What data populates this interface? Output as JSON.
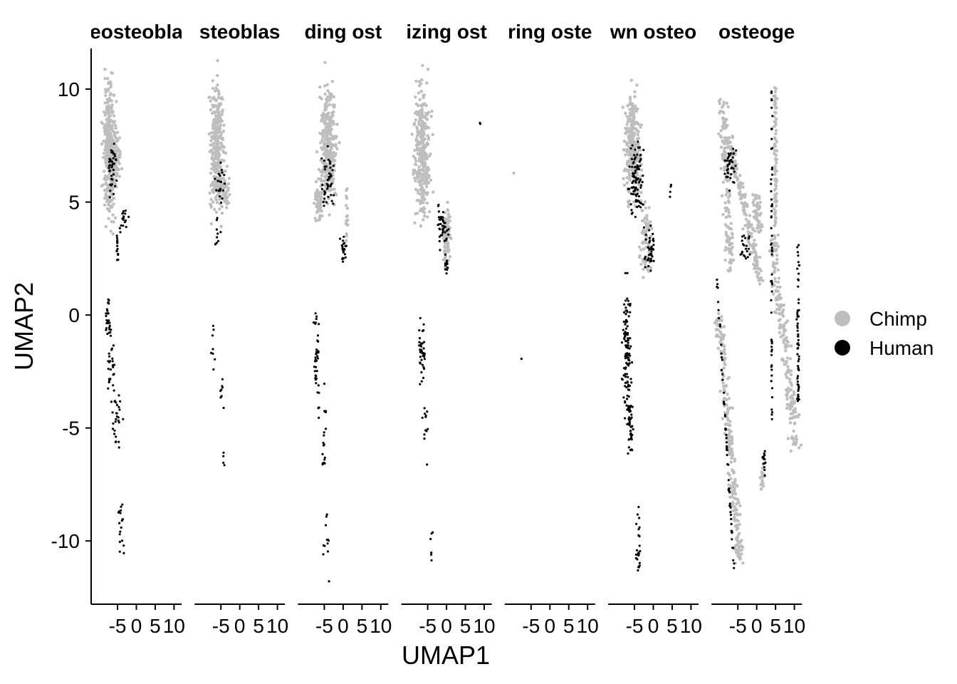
{
  "chart_data": {
    "type": "scatter",
    "xlabel": "UMAP1",
    "ylabel": "UMAP2",
    "xlim": [
      -12,
      12
    ],
    "ylim": [
      -12.8,
      11.8
    ],
    "x_ticks": [
      -5,
      0,
      5,
      10
    ],
    "x_tick_labels": [
      "-5",
      "0",
      "5",
      "10"
    ],
    "y_ticks": [
      -10,
      -5,
      0,
      5,
      10
    ],
    "y_tick_labels": [
      "-10",
      "-5",
      "0",
      "5",
      "10"
    ],
    "grid": false,
    "legend_placement": "right",
    "legend": [
      {
        "name": "Chimp",
        "color": "#bebebe"
      },
      {
        "name": "Human",
        "color": "#000000"
      }
    ],
    "facets": [
      {
        "title": "eosteobla",
        "chimp": [
          {
            "type": "blob",
            "cx": -7.2,
            "cy": 7.2,
            "rx": 1.4,
            "ry": 2.6,
            "n": 320
          },
          {
            "type": "blob",
            "cx": -5.5,
            "cy": 6.8,
            "rx": 1.2,
            "ry": 1.2,
            "n": 80
          }
        ],
        "human": [
          {
            "type": "blob",
            "cx": -6.5,
            "cy": 6.5,
            "rx": 1.0,
            "ry": 1.0,
            "n": 40
          },
          {
            "type": "blob",
            "cx": -3.5,
            "cy": 4.2,
            "rx": 1.2,
            "ry": 0.6,
            "n": 18
          },
          {
            "type": "blob",
            "cx": -5.0,
            "cy": 3.0,
            "rx": 0.25,
            "ry": 0.6,
            "n": 14
          },
          {
            "type": "blob",
            "cx": -7.5,
            "cy": 0.0,
            "rx": 0.4,
            "ry": 0.9,
            "n": 22
          },
          {
            "type": "blob",
            "cx": -6.8,
            "cy": -2.0,
            "rx": 0.8,
            "ry": 1.8,
            "n": 30
          },
          {
            "type": "blob",
            "cx": -5.0,
            "cy": -4.5,
            "rx": 1.2,
            "ry": 1.6,
            "n": 28
          },
          {
            "type": "blob",
            "cx": -4.0,
            "cy": -9.5,
            "rx": 0.8,
            "ry": 1.6,
            "n": 18
          }
        ]
      },
      {
        "title": "steoblas",
        "chimp": [
          {
            "type": "blob",
            "cx": -6.0,
            "cy": 7.4,
            "rx": 1.6,
            "ry": 2.4,
            "n": 340
          },
          {
            "type": "blob",
            "cx": -4.0,
            "cy": 5.5,
            "rx": 1.2,
            "ry": 0.8,
            "n": 50
          }
        ],
        "human": [
          {
            "type": "blob",
            "cx": -5.2,
            "cy": 5.8,
            "rx": 1.0,
            "ry": 0.9,
            "n": 20
          },
          {
            "type": "blob",
            "cx": -6.0,
            "cy": 3.8,
            "rx": 0.6,
            "ry": 0.7,
            "n": 10
          },
          {
            "type": "blob",
            "cx": -7.0,
            "cy": -1.5,
            "rx": 0.9,
            "ry": 1.0,
            "n": 8
          },
          {
            "type": "blob",
            "cx": -5.0,
            "cy": -3.5,
            "rx": 0.6,
            "ry": 1.2,
            "n": 8
          },
          {
            "type": "blob",
            "cx": -4.5,
            "cy": -6.2,
            "rx": 0.6,
            "ry": 0.6,
            "n": 4
          }
        ]
      },
      {
        "title": "ding ost",
        "chimp": [
          {
            "type": "blob",
            "cx": -4.0,
            "cy": 7.6,
            "rx": 2.0,
            "ry": 2.3,
            "n": 320
          },
          {
            "type": "blob",
            "cx": -6.5,
            "cy": 5.0,
            "rx": 1.2,
            "ry": 0.8,
            "n": 60
          },
          {
            "type": "blob",
            "cx": 1.0,
            "cy": 4.5,
            "rx": 0.3,
            "ry": 1.0,
            "n": 20
          }
        ],
        "human": [
          {
            "type": "blob",
            "cx": -4.0,
            "cy": 6.0,
            "rx": 1.5,
            "ry": 1.2,
            "n": 40
          },
          {
            "type": "blob",
            "cx": 0.0,
            "cy": 3.0,
            "rx": 0.8,
            "ry": 0.6,
            "n": 22
          },
          {
            "type": "blob",
            "cx": -7.0,
            "cy": -2.0,
            "rx": 0.7,
            "ry": 2.4,
            "n": 40
          },
          {
            "type": "blob",
            "cx": -5.0,
            "cy": -5.5,
            "rx": 0.4,
            "ry": 1.8,
            "n": 18
          },
          {
            "type": "blob",
            "cx": -4.5,
            "cy": -9.8,
            "rx": 0.6,
            "ry": 1.2,
            "n": 12
          }
        ]
      },
      {
        "title": "izing ost",
        "chimp": [
          {
            "type": "blob",
            "cx": -6.5,
            "cy": 7.2,
            "rx": 1.8,
            "ry": 2.6,
            "n": 320
          },
          {
            "type": "blob",
            "cx": 0.0,
            "cy": 3.5,
            "rx": 0.9,
            "ry": 1.2,
            "n": 90
          }
        ],
        "human": [
          {
            "type": "blob",
            "cx": -1.0,
            "cy": 4.0,
            "rx": 1.2,
            "ry": 0.8,
            "n": 40
          },
          {
            "type": "blob",
            "cx": 0.0,
            "cy": 2.2,
            "rx": 0.5,
            "ry": 0.5,
            "n": 14
          },
          {
            "type": "blob",
            "cx": -6.5,
            "cy": -1.5,
            "rx": 0.9,
            "ry": 1.3,
            "n": 40
          },
          {
            "type": "blob",
            "cx": -5.5,
            "cy": -4.8,
            "rx": 0.7,
            "ry": 1.2,
            "n": 12
          },
          {
            "type": "blob",
            "cx": -4.0,
            "cy": -10.2,
            "rx": 0.5,
            "ry": 1.0,
            "n": 6
          },
          {
            "type": "blob",
            "cx": 9.0,
            "cy": 8.4,
            "rx": 0.2,
            "ry": 0.4,
            "n": 2
          }
        ]
      },
      {
        "title": "ring oste",
        "chimp": [
          {
            "type": "blob",
            "cx": -9.5,
            "cy": 6.2,
            "rx": 0.1,
            "ry": 0.1,
            "n": 1
          }
        ],
        "human": [
          {
            "type": "blob",
            "cx": -7.5,
            "cy": -1.9,
            "rx": 0.1,
            "ry": 0.1,
            "n": 1
          }
        ]
      },
      {
        "title": "wn osteo",
        "chimp": [
          {
            "type": "blob",
            "cx": -5.5,
            "cy": 7.4,
            "rx": 1.8,
            "ry": 2.0,
            "n": 280
          },
          {
            "type": "blob",
            "cx": -2.0,
            "cy": 3.5,
            "rx": 1.5,
            "ry": 1.5,
            "n": 80
          }
        ],
        "human": [
          {
            "type": "blob",
            "cx": -4.5,
            "cy": 6.0,
            "rx": 1.5,
            "ry": 1.5,
            "n": 90
          },
          {
            "type": "blob",
            "cx": -1.0,
            "cy": 3.0,
            "rx": 1.5,
            "ry": 1.0,
            "n": 40
          },
          {
            "type": "blob",
            "cx": -7.0,
            "cy": -1.5,
            "rx": 0.9,
            "ry": 2.5,
            "n": 110
          },
          {
            "type": "blob",
            "cx": -6.0,
            "cy": -5.0,
            "rx": 0.8,
            "ry": 1.2,
            "n": 40
          },
          {
            "type": "blob",
            "cx": -4.0,
            "cy": -10.0,
            "rx": 0.6,
            "ry": 1.5,
            "n": 25
          },
          {
            "type": "blob",
            "cx": 4.5,
            "cy": 5.5,
            "rx": 0.4,
            "ry": 0.8,
            "n": 4
          }
        ]
      },
      {
        "title": "osteoge",
        "chimp": [
          {
            "type": "ribbon",
            "x1": -10.0,
            "y1": 0.0,
            "x2": -4.5,
            "y2": -11.0,
            "w": 1.1,
            "n": 260
          },
          {
            "type": "ribbon",
            "x1": -9.0,
            "y1": 9.5,
            "x2": -7.0,
            "y2": 2.0,
            "w": 1.2,
            "n": 150
          },
          {
            "type": "ribbon",
            "x1": -7.5,
            "y1": 8.0,
            "x2": 1.0,
            "y2": 1.5,
            "w": 0.9,
            "n": 160
          },
          {
            "type": "ribbon",
            "x1": 5.0,
            "y1": 10.0,
            "x2": 5.0,
            "y2": 4.0,
            "w": 0.4,
            "n": 80
          },
          {
            "type": "ribbon",
            "x1": 4.0,
            "y1": 3.5,
            "x2": 10.5,
            "y2": -6.0,
            "w": 1.4,
            "n": 200
          },
          {
            "type": "blob",
            "cx": 0.0,
            "cy": 4.5,
            "rx": 1.2,
            "ry": 0.8,
            "n": 60
          },
          {
            "type": "blob",
            "cx": 1.5,
            "cy": -7.0,
            "rx": 0.4,
            "ry": 0.7,
            "n": 20
          }
        ],
        "human": [
          {
            "type": "blob",
            "cx": -7.0,
            "cy": 6.5,
            "rx": 1.2,
            "ry": 0.9,
            "n": 40
          },
          {
            "type": "ribbon",
            "x1": 4.0,
            "y1": 10.0,
            "x2": 4.0,
            "y2": -5.0,
            "w": 0.2,
            "n": 60
          },
          {
            "type": "ribbon",
            "x1": 11.0,
            "y1": 3.0,
            "x2": 11.0,
            "y2": -4.0,
            "w": 0.3,
            "n": 60
          },
          {
            "type": "blob",
            "cx": -3.0,
            "cy": 3.0,
            "rx": 1.0,
            "ry": 0.6,
            "n": 20
          },
          {
            "type": "blob",
            "cx": 2.0,
            "cy": -6.5,
            "rx": 0.4,
            "ry": 0.6,
            "n": 14
          },
          {
            "type": "ribbon",
            "x1": -10.5,
            "y1": 1.5,
            "x2": -6.0,
            "y2": -11.3,
            "w": 0.15,
            "n": 60
          }
        ]
      }
    ]
  }
}
